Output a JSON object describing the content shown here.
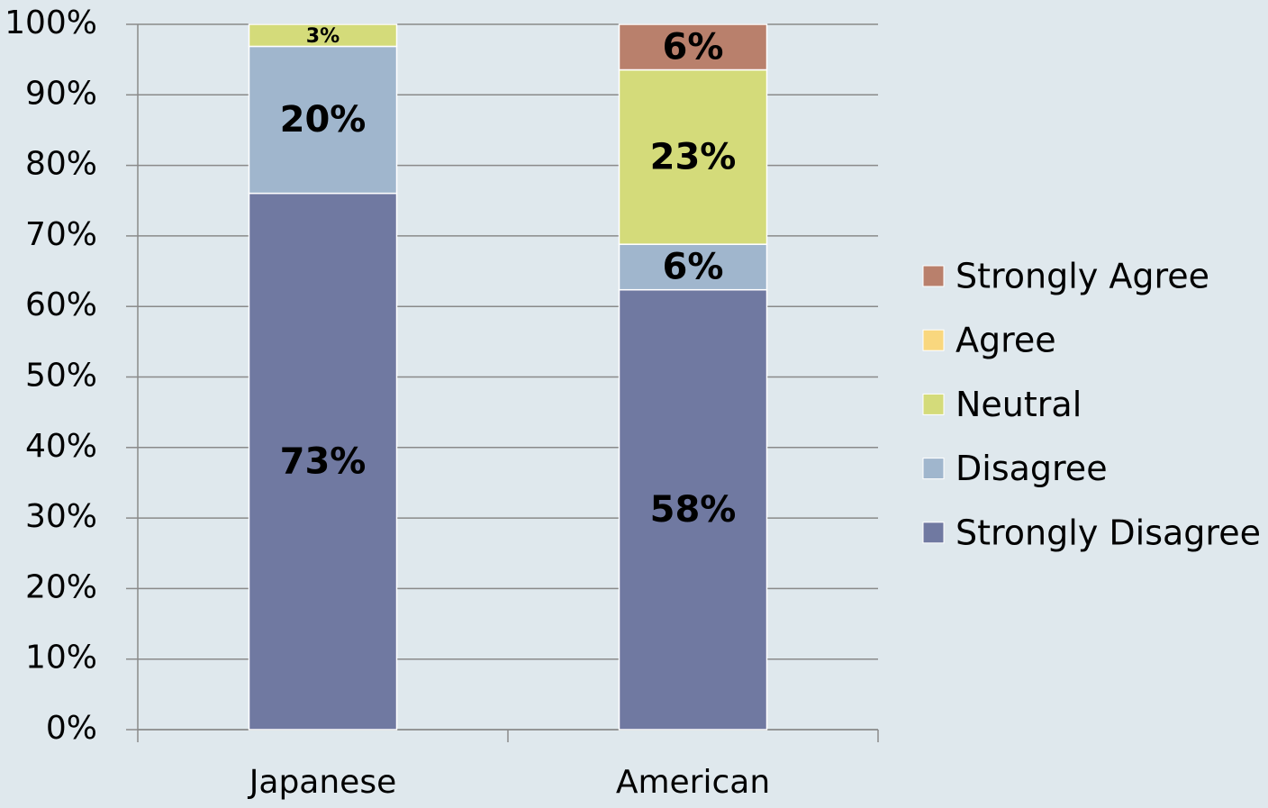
{
  "chart_data": {
    "type": "stacked_percent_bar",
    "categories": [
      "Japanese",
      "American"
    ],
    "series": [
      {
        "name": "Strongly Disagree",
        "color": "#7079a1",
        "values": [
          73,
          58
        ],
        "value_labels": [
          "73%",
          "58%"
        ]
      },
      {
        "name": "Disagree",
        "color": "#a0b6cd",
        "values": [
          20,
          6
        ],
        "value_labels": [
          "20%",
          "6%"
        ]
      },
      {
        "name": "Neutral",
        "color": "#d4db7a",
        "values": [
          3,
          23
        ],
        "value_labels": [
          "3%",
          "23%"
        ]
      },
      {
        "name": "Agree",
        "color": "#f9d77e",
        "values": [
          0,
          0
        ],
        "value_labels": [
          null,
          null
        ]
      },
      {
        "name": "Strongly Agree",
        "color": "#b9806c",
        "values": [
          0,
          6
        ],
        "value_labels": [
          null,
          "6%"
        ]
      }
    ],
    "ylim": [
      0,
      100
    ],
    "yticks": [
      {
        "value": 0,
        "label": "0%"
      },
      {
        "value": 10,
        "label": "10%"
      },
      {
        "value": 20,
        "label": "20%"
      },
      {
        "value": 30,
        "label": "30%"
      },
      {
        "value": 40,
        "label": "40%"
      },
      {
        "value": 50,
        "label": "50%"
      },
      {
        "value": 60,
        "label": "60%"
      },
      {
        "value": 70,
        "label": "70%"
      },
      {
        "value": 80,
        "label": "80%"
      },
      {
        "value": 90,
        "label": "90%"
      },
      {
        "value": 100,
        "label": "100%"
      }
    ],
    "grid": true,
    "legend": "right"
  }
}
